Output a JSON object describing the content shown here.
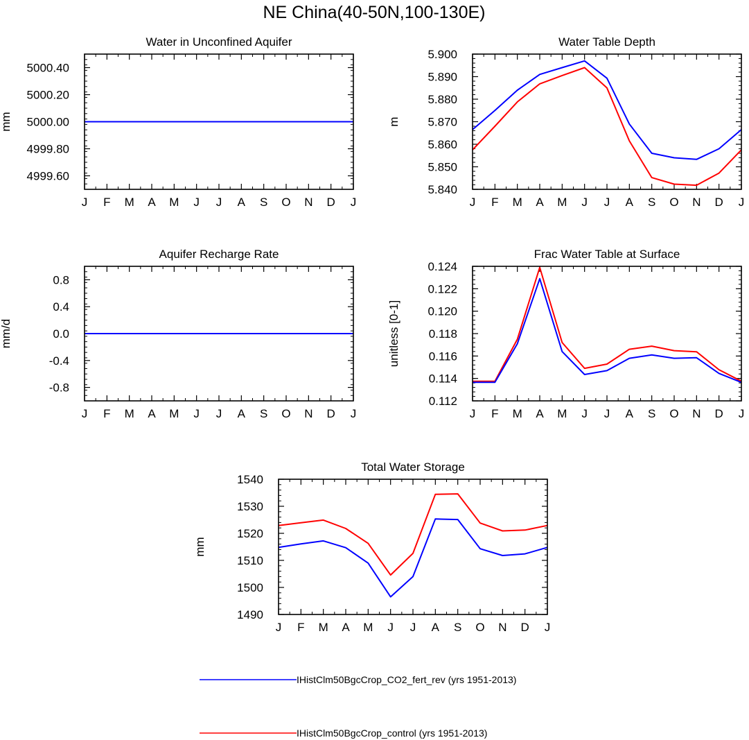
{
  "figure": {
    "title": "NE China(40-50N,100-130E)"
  },
  "colors": {
    "series_a": "#0000ff",
    "series_b": "#ff0000",
    "frame": "#000000"
  },
  "legend": {
    "entries": [
      {
        "label": "IHistClm50BgcCrop_CO2_fert_rev (yrs 1951-2013)",
        "color": "#0000ff"
      },
      {
        "label": "IHistClm50BgcCrop_control (yrs 1951-2013)",
        "color": "#ff0000"
      }
    ]
  },
  "chart_data": [
    {
      "type": "line",
      "title": "Water in Unconfined Aquifer",
      "ylabel": "mm",
      "xticks": [
        "J",
        "F",
        "M",
        "A",
        "M",
        "J",
        "J",
        "A",
        "S",
        "O",
        "N",
        "D",
        "J"
      ],
      "ylim": [
        4999.5,
        5000.5
      ],
      "yticks": [
        4999.6,
        4999.8,
        5000.0,
        5000.2,
        5000.4
      ],
      "ytick_labels": [
        "4999.60",
        "4999.80",
        "5000.00",
        "5000.20",
        "5000.40"
      ],
      "series": [
        {
          "color": "#0000ff",
          "values": [
            5000,
            5000,
            5000,
            5000,
            5000,
            5000,
            5000,
            5000,
            5000,
            5000,
            5000,
            5000,
            5000
          ]
        }
      ]
    },
    {
      "type": "line",
      "title": "Water Table Depth",
      "ylabel": "m",
      "xticks": [
        "J",
        "F",
        "M",
        "A",
        "M",
        "J",
        "J",
        "A",
        "S",
        "O",
        "N",
        "D",
        "J"
      ],
      "ylim": [
        5.84,
        5.9
      ],
      "yticks": [
        5.84,
        5.85,
        5.86,
        5.87,
        5.88,
        5.89,
        5.9
      ],
      "ytick_labels": [
        "5.840",
        "5.850",
        "5.860",
        "5.870",
        "5.880",
        "5.890",
        "5.900"
      ],
      "series": [
        {
          "color": "#0000ff",
          "values": [
            5.8665,
            5.875,
            5.884,
            5.891,
            5.894,
            5.897,
            5.8893,
            5.869,
            5.856,
            5.854,
            5.8533,
            5.858,
            5.8665
          ]
        },
        {
          "color": "#ff0000",
          "values": [
            5.8575,
            5.868,
            5.8788,
            5.8868,
            5.8905,
            5.894,
            5.885,
            5.8615,
            5.8452,
            5.8423,
            5.8418,
            5.8472,
            5.8575
          ]
        }
      ]
    },
    {
      "type": "line",
      "title": "Aquifer Recharge Rate",
      "ylabel": "mm/d",
      "xticks": [
        "J",
        "F",
        "M",
        "A",
        "M",
        "J",
        "J",
        "A",
        "S",
        "O",
        "N",
        "D",
        "J"
      ],
      "ylim": [
        -1.0,
        1.0
      ],
      "yticks": [
        -0.8,
        -0.4,
        0.0,
        0.4,
        0.8
      ],
      "ytick_labels": [
        "-0.8",
        "-0.4",
        "0.0",
        "0.4",
        "0.8"
      ],
      "series": [
        {
          "color": "#0000ff",
          "values": [
            0,
            0,
            0,
            0,
            0,
            0,
            0,
            0,
            0,
            0,
            0,
            0,
            0
          ]
        }
      ]
    },
    {
      "type": "line",
      "title": "Frac Water Table at Surface",
      "ylabel": "unitless [0-1]",
      "xticks": [
        "J",
        "F",
        "M",
        "A",
        "M",
        "J",
        "J",
        "A",
        "S",
        "O",
        "N",
        "D",
        "J"
      ],
      "ylim": [
        0.112,
        0.124
      ],
      "yticks": [
        0.112,
        0.114,
        0.116,
        0.118,
        0.12,
        0.122,
        0.124
      ],
      "ytick_labels": [
        "0.112",
        "0.114",
        "0.116",
        "0.118",
        "0.120",
        "0.122",
        "0.124"
      ],
      "series": [
        {
          "color": "#0000ff",
          "values": [
            0.11365,
            0.11365,
            0.1171,
            0.1229,
            0.1164,
            0.11435,
            0.1147,
            0.1158,
            0.1161,
            0.1158,
            0.11585,
            0.11445,
            0.11365
          ]
        },
        {
          "color": "#ff0000",
          "values": [
            0.11375,
            0.11375,
            0.1175,
            0.1239,
            0.1172,
            0.1149,
            0.11528,
            0.1166,
            0.11688,
            0.11648,
            0.11638,
            0.11478,
            0.11375
          ]
        }
      ]
    },
    {
      "type": "line",
      "title": "Total Water Storage",
      "ylabel": "mm",
      "xticks": [
        "J",
        "F",
        "M",
        "A",
        "M",
        "J",
        "J",
        "A",
        "S",
        "O",
        "N",
        "D",
        "J"
      ],
      "ylim": [
        1490,
        1540
      ],
      "yticks": [
        1490,
        1500,
        1510,
        1520,
        1530,
        1540
      ],
      "ytick_labels": [
        "1490",
        "1500",
        "1510",
        "1520",
        "1530",
        "1540"
      ],
      "series": [
        {
          "color": "#0000ff",
          "values": [
            1514.8,
            1516.1,
            1517.2,
            1514.7,
            1509.0,
            1496.5,
            1504.0,
            1525.3,
            1525.1,
            1514.3,
            1511.8,
            1512.4,
            1514.8
          ]
        },
        {
          "color": "#ff0000",
          "values": [
            1522.9,
            1523.9,
            1524.9,
            1521.8,
            1516.3,
            1504.6,
            1512.6,
            1534.4,
            1534.6,
            1523.8,
            1520.9,
            1521.2,
            1522.9
          ]
        }
      ]
    }
  ]
}
